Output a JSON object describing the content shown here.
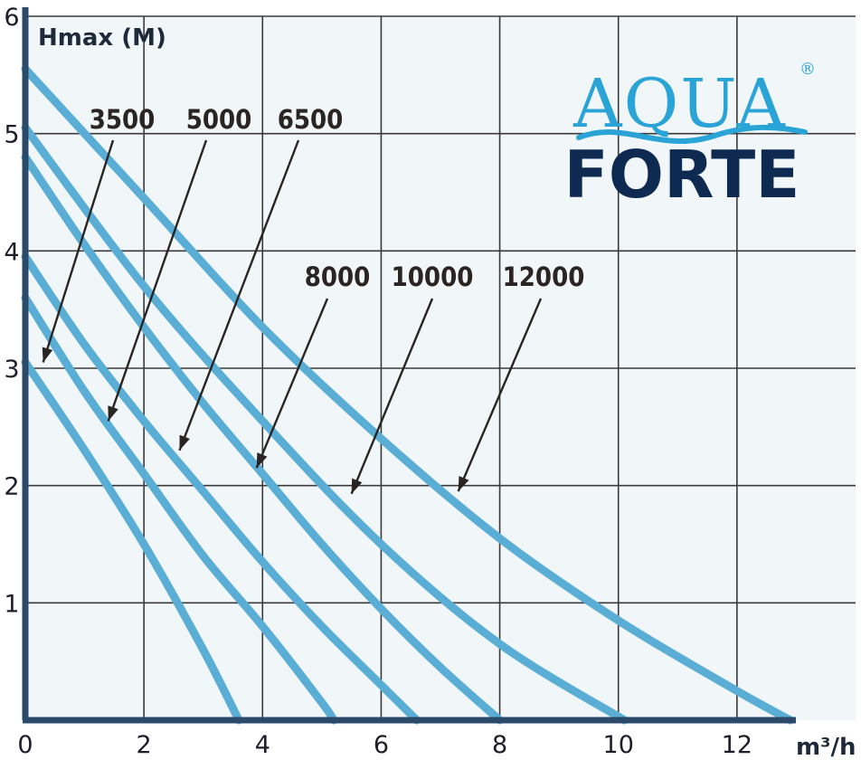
{
  "brand": {
    "line1": "AQUA",
    "line2": "FORTE",
    "registered": "®",
    "colors": {
      "aqua": "#2aa3d6",
      "forte": "#0e2a50"
    }
  },
  "colors": {
    "background": "#f1f6f9",
    "grid": "#3a3a3a",
    "axis": "#2b4a6a",
    "curve": "#5aaed6",
    "arrow": "#2a2422"
  },
  "chart_data": {
    "type": "line",
    "title": "",
    "xlabel": "m³/h",
    "ylabel": "Hmax (M)",
    "xlim": [
      0,
      14
    ],
    "ylim": [
      0,
      6
    ],
    "grid": true,
    "x_ticks": [
      "0",
      "2",
      "4",
      "6",
      "8",
      "10",
      "12"
    ],
    "y_ticks": [
      "1",
      "2",
      "3",
      "4",
      "5",
      "6"
    ],
    "series": [
      {
        "name": "3500",
        "x": [
          0,
          1,
          2,
          3,
          3.6
        ],
        "y": [
          3.05,
          2.3,
          1.5,
          0.6,
          0
        ]
      },
      {
        "name": "5000",
        "x": [
          0,
          1,
          2,
          3,
          4,
          5,
          5.2
        ],
        "y": [
          3.6,
          2.8,
          2.1,
          1.4,
          0.8,
          0.15,
          0
        ]
      },
      {
        "name": "6500",
        "x": [
          0,
          1,
          2,
          3,
          4,
          5,
          6,
          6.6
        ],
        "y": [
          3.95,
          3.2,
          2.55,
          1.95,
          1.35,
          0.8,
          0.3,
          0
        ]
      },
      {
        "name": "8000",
        "x": [
          0,
          1,
          2,
          3,
          4,
          5,
          6,
          7,
          8
        ],
        "y": [
          4.8,
          4.05,
          3.35,
          2.7,
          2.1,
          1.5,
          0.95,
          0.45,
          0
        ]
      },
      {
        "name": "10000",
        "x": [
          0,
          2,
          4,
          6,
          8,
          10.1
        ],
        "y": [
          5.05,
          3.7,
          2.55,
          1.5,
          0.65,
          0
        ]
      },
      {
        "name": "12000",
        "x": [
          0,
          2,
          4,
          6,
          8,
          10,
          12,
          12.9
        ],
        "y": [
          5.55,
          4.45,
          3.35,
          2.4,
          1.55,
          0.85,
          0.25,
          0
        ]
      }
    ],
    "annotations": [
      {
        "label": "3500",
        "arrow_to": [
          0.3,
          3.05
        ]
      },
      {
        "label": "5000",
        "arrow_to": [
          1.4,
          2.55
        ]
      },
      {
        "label": "6500",
        "arrow_to": [
          2.6,
          2.3
        ]
      },
      {
        "label": "8000",
        "arrow_to": [
          3.9,
          2.15
        ]
      },
      {
        "label": "10000",
        "arrow_to": [
          5.5,
          1.93
        ]
      },
      {
        "label": "12000",
        "arrow_to": [
          7.3,
          1.95
        ]
      }
    ]
  }
}
